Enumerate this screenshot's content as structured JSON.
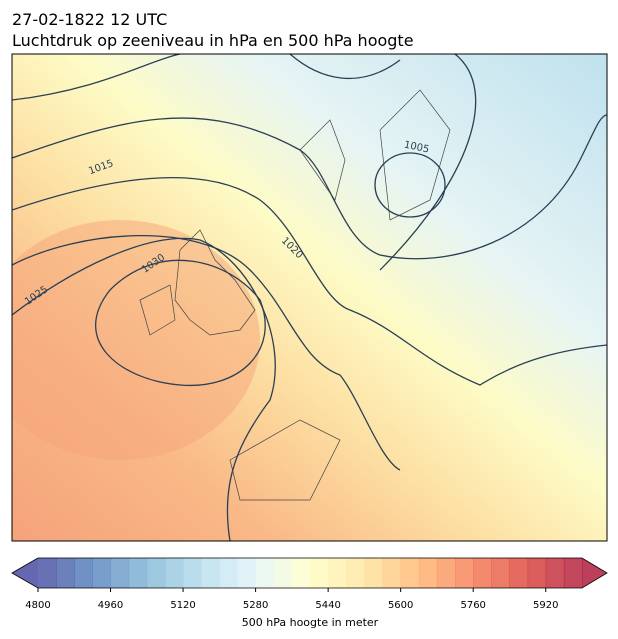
{
  "header": {
    "date": "27-02-1822 12 UTC",
    "title": "Luchtdruk op zeeniveau in hPa en 500 hPa hoogte"
  },
  "map": {
    "isobar_labels": [
      "1005",
      "1015",
      "1020",
      "1025",
      "1030"
    ]
  },
  "colorbar": {
    "label": "500 hPa hoogte in meter",
    "colormap": "RdYlBu_r",
    "lim": [
      4800,
      6000
    ],
    "step": 40,
    "ticks": [
      4800,
      4960,
      5120,
      5280,
      5440,
      5600,
      5760,
      5920
    ]
  }
}
